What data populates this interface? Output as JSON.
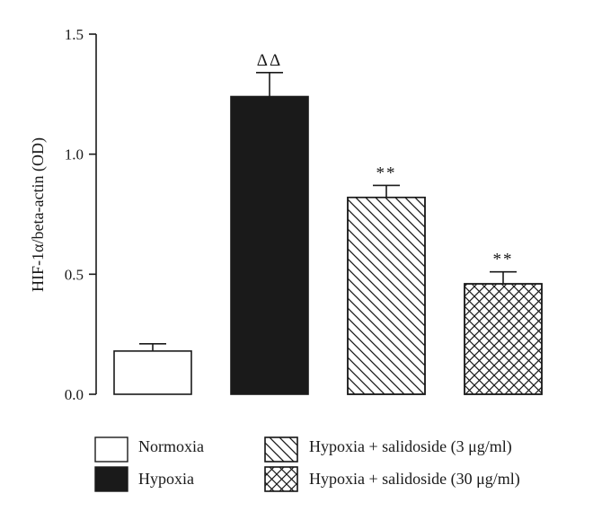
{
  "chart_data": {
    "type": "bar",
    "title": "",
    "xlabel": "",
    "ylabel": "HIF-1α/beta-actin (OD)",
    "ylim": [
      0,
      1.5
    ],
    "yticks": [
      0.0,
      0.5,
      1.0,
      1.5
    ],
    "ytick_labels": [
      "0.0",
      "0.5",
      "1.0",
      "1.5"
    ],
    "grid": false,
    "legend_position": "bottom",
    "categories": [
      "Normoxia",
      "Hypoxia",
      "Hypoxia + salidoside (3 μg/ml)",
      "Hypoxia + salidoside (30 μg/ml)"
    ],
    "values": [
      0.18,
      1.24,
      0.82,
      0.46
    ],
    "error": [
      0.03,
      0.1,
      0.05,
      0.05
    ],
    "significance": [
      "",
      "ΔΔ",
      "**",
      "**"
    ],
    "bar_styles": [
      {
        "fill": "#ffffff",
        "pattern": "none"
      },
      {
        "fill": "#1a1a1a",
        "pattern": "none"
      },
      {
        "fill": "#ffffff",
        "pattern": "diagonal"
      },
      {
        "fill": "#ffffff",
        "pattern": "crosshatch"
      }
    ]
  }
}
